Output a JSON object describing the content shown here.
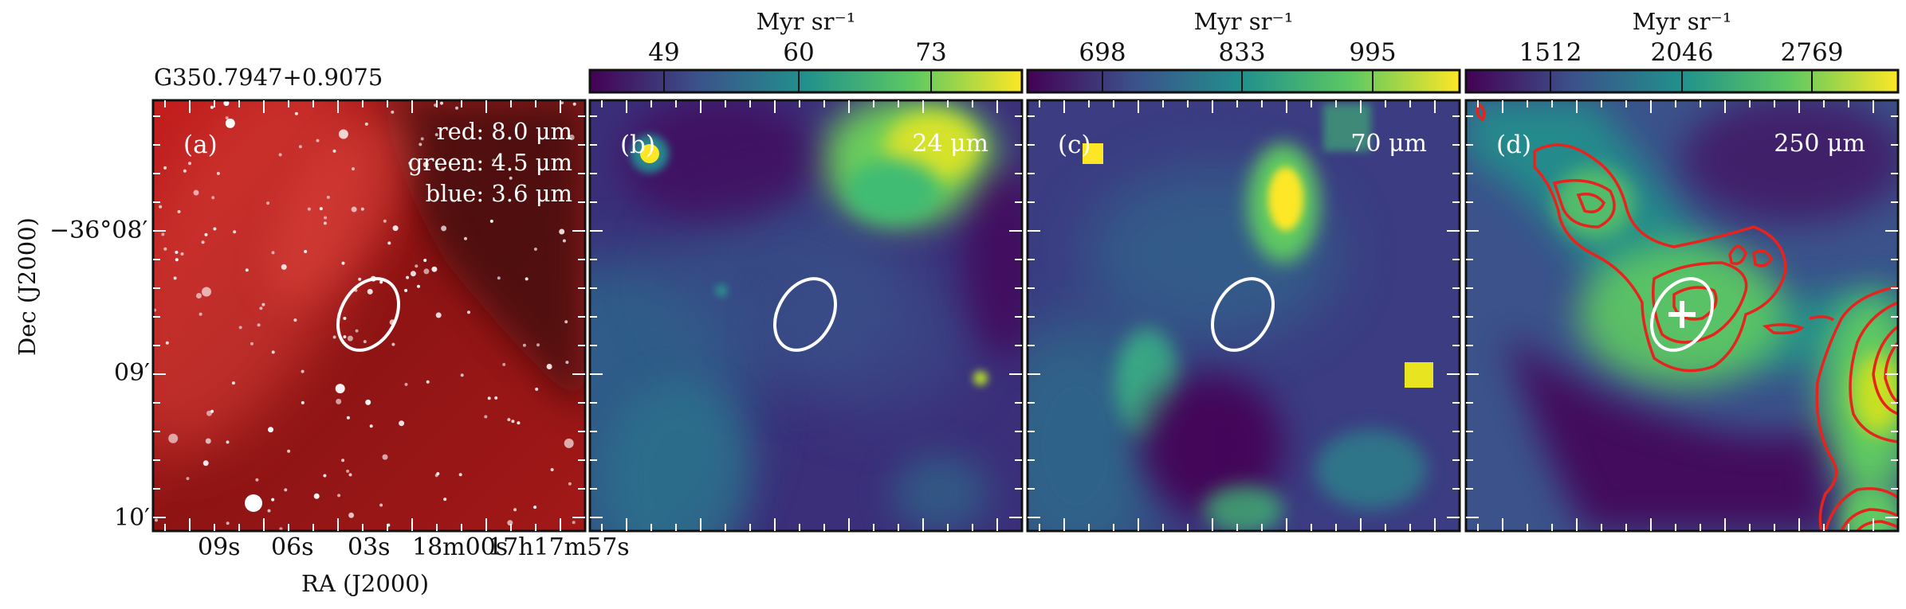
{
  "figure": {
    "source_name": "G350.7947+0.9075",
    "y_axis": {
      "label": "Dec (J2000)",
      "ticks": [
        "−36°08′",
        "09′",
        "10′"
      ]
    },
    "x_axis": {
      "label": "RA (J2000)",
      "ticks": [
        "09s",
        "06s",
        "03s",
        "18m00s",
        "17h17m57s"
      ]
    },
    "panels": [
      {
        "label": "(a)",
        "legend": [
          "red: 8.0 μm",
          "green: 4.5 μm",
          "blue: 3.6 μm"
        ]
      },
      {
        "label": "(b)",
        "wavelength": "24 μm",
        "colorbar": {
          "title": "Myr sr⁻¹",
          "ticks": [
            "49",
            "60",
            "73"
          ]
        }
      },
      {
        "label": "(c)",
        "wavelength": "70 μm",
        "colorbar": {
          "title": "Myr sr⁻¹",
          "ticks": [
            "698",
            "833",
            "995"
          ]
        }
      },
      {
        "label": "(d)",
        "wavelength": "250 μm",
        "colorbar": {
          "title": "Myr sr⁻¹",
          "ticks": [
            "1512",
            "2046",
            "2769"
          ]
        }
      }
    ],
    "colors": {
      "viridis_dark": "#440154",
      "viridis_mid": "#21918c",
      "viridis_bright": "#fde725",
      "contour": "#e8221c",
      "ellipse": "#ffffff"
    }
  }
}
